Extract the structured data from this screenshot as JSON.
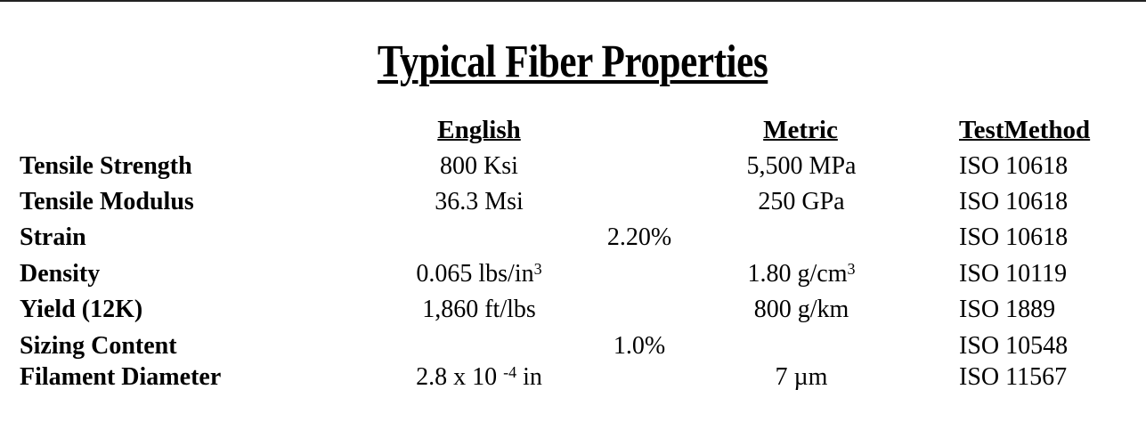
{
  "title": "Typical Fiber Properties",
  "headers": {
    "english": "English",
    "metric": "Metric",
    "test_method": "TestMethod"
  },
  "rows": [
    {
      "label": "Tensile Strength",
      "english": {
        "value": "800 Ksi"
      },
      "metric": {
        "value": "5,500 MPa"
      },
      "test": "ISO 10618"
    },
    {
      "label": "Tensile Modulus",
      "english": {
        "value": "36.3 Msi"
      },
      "metric": {
        "value": "250 GPa"
      },
      "test": "ISO 10618"
    },
    {
      "label": "Strain",
      "shared": {
        "value": "2.20%"
      },
      "test": "ISO 10618"
    },
    {
      "label": "Density",
      "english": {
        "value": "0.065 lbs/in",
        "sup": "3"
      },
      "metric": {
        "value": "1.80 g/cm",
        "sup": "3"
      },
      "test": "ISO 10119"
    },
    {
      "label": "Yield (12K)",
      "english": {
        "value": "1,860 ft/lbs"
      },
      "metric": {
        "value": "800 g/km"
      },
      "test": "ISO 1889"
    },
    {
      "label": "Sizing Content",
      "shared": {
        "value": "1.0%"
      },
      "test": "ISO 10548"
    },
    {
      "label": "Filament Diameter",
      "english": {
        "value": "2.8 x 10 ",
        "sup": "-4",
        "suffix": " in"
      },
      "metric": {
        "value": "7 µm"
      },
      "test": "ISO 11567"
    }
  ]
}
